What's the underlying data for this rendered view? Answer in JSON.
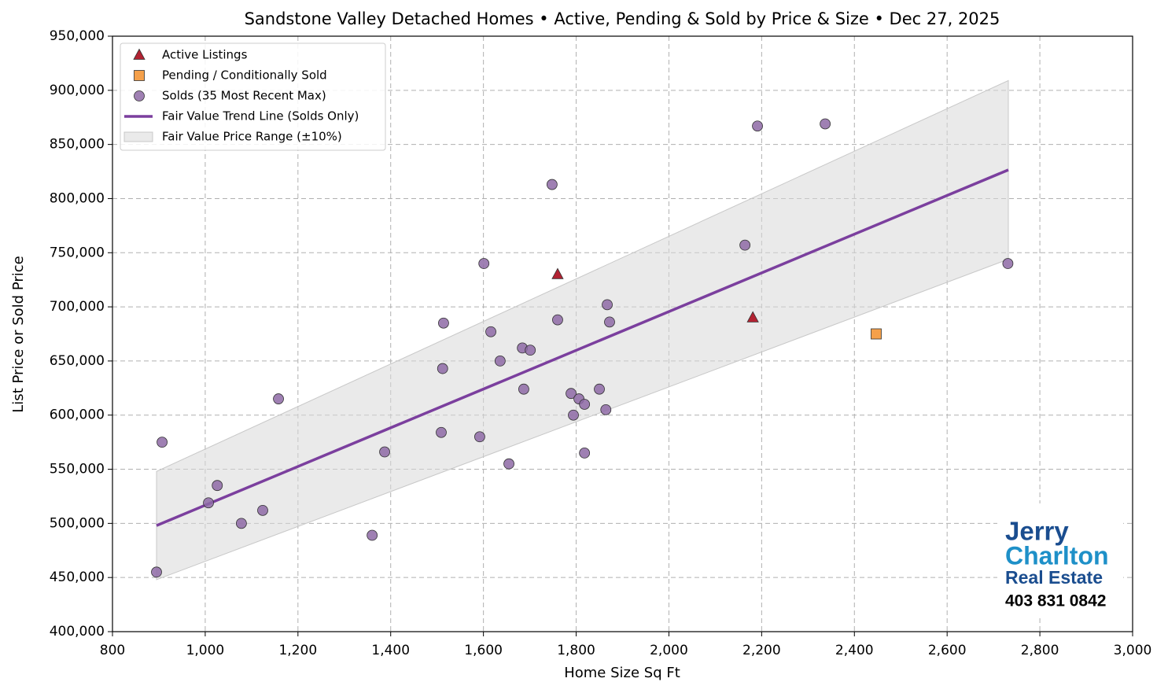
{
  "chart_data": {
    "type": "scatter",
    "title": "Sandstone Valley Detached Homes • Active, Pending & Sold by Price & Size • Dec 27, 2025",
    "x_label": "Home Size Sq Ft",
    "y_label": "List Price or Sold Price",
    "xlim": [
      800,
      3000
    ],
    "xticks": [
      800,
      {
        "value": 1000,
        "label": "1,000"
      },
      {
        "value": 1200,
        "label": "1,200"
      },
      {
        "value": 1400,
        "label": "1,400"
      },
      {
        "value": 1600,
        "label": "1,600"
      },
      {
        "value": 1800,
        "label": "1,800"
      },
      {
        "value": 2000,
        "label": "2,000"
      },
      {
        "value": 2200,
        "label": "2,200"
      },
      {
        "value": 2400,
        "label": "2,400"
      },
      {
        "value": 2600,
        "label": "2,600"
      },
      {
        "value": 2800,
        "label": "2,800"
      },
      {
        "value": 3000,
        "label": "3,000"
      }
    ],
    "ylim": [
      400000,
      950000
    ],
    "yticks": [
      {
        "value": 400000,
        "label": "400,000"
      },
      {
        "value": 450000,
        "label": "450,000"
      },
      {
        "value": 500000,
        "label": "500,000"
      },
      {
        "value": 550000,
        "label": "550,000"
      },
      {
        "value": 600000,
        "label": "600,000"
      },
      {
        "value": 650000,
        "label": "650,000"
      },
      {
        "value": 700000,
        "label": "700,000"
      },
      {
        "value": 750000,
        "label": "750,000"
      },
      {
        "value": 800000,
        "label": "800,000"
      },
      {
        "value": 850000,
        "label": "850,000"
      },
      {
        "value": 900000,
        "label": "900,000"
      },
      {
        "value": 950000,
        "label": "950,000"
      }
    ],
    "grid": true,
    "legend": "upper-left",
    "series": [
      {
        "name": "Active Listings",
        "kind": "points",
        "marker": "triangle",
        "color": "#b22232",
        "x": [
          1760,
          2181
        ],
        "values": [
          730000,
          690000
        ]
      },
      {
        "name": "Pending / Conditionally Sold",
        "kind": "points",
        "marker": "square",
        "color": "#f5a04a",
        "x": [
          2447
        ],
        "values": [
          675000
        ]
      },
      {
        "name": "Solds (35 Most Recent Max)",
        "kind": "points",
        "marker": "circle",
        "color": "#8e6aa6",
        "x": [
          895,
          907,
          1007,
          1026,
          1078,
          1124,
          1158,
          1360,
          1387,
          1509,
          1512,
          1514,
          1592,
          1601,
          1616,
          1636,
          1655,
          1684,
          1687,
          1701,
          1748,
          1760,
          1789,
          1794,
          1806,
          1818,
          1818,
          1850,
          1864,
          1867,
          1872,
          2164,
          2191,
          2337,
          2731
        ],
        "values": [
          455000,
          575000,
          519000,
          535000,
          500000,
          512000,
          615000,
          489000,
          566000,
          584000,
          643000,
          685000,
          580000,
          740000,
          677000,
          650000,
          555000,
          662000,
          624000,
          660000,
          813000,
          688000,
          620000,
          600000,
          615000,
          610000,
          565000,
          624000,
          605000,
          702000,
          686000,
          757000,
          867000,
          869000,
          740000
        ]
      },
      {
        "name": "Fair Value Trend Line (Solds Only)",
        "kind": "line",
        "color": "#7b3f9e",
        "x": [
          895,
          2732
        ],
        "values": [
          498000,
          826500
        ]
      },
      {
        "name": "Fair Value Price Range (±10%)",
        "kind": "band",
        "color": "#d9d9d9",
        "x": [
          895,
          2732
        ],
        "lower": [
          448000,
          744000
        ],
        "upper": [
          548000,
          909000
        ]
      }
    ],
    "watermark": [
      "Jerry",
      "Charlton",
      "Real Estate",
      "403 831 0842"
    ]
  }
}
